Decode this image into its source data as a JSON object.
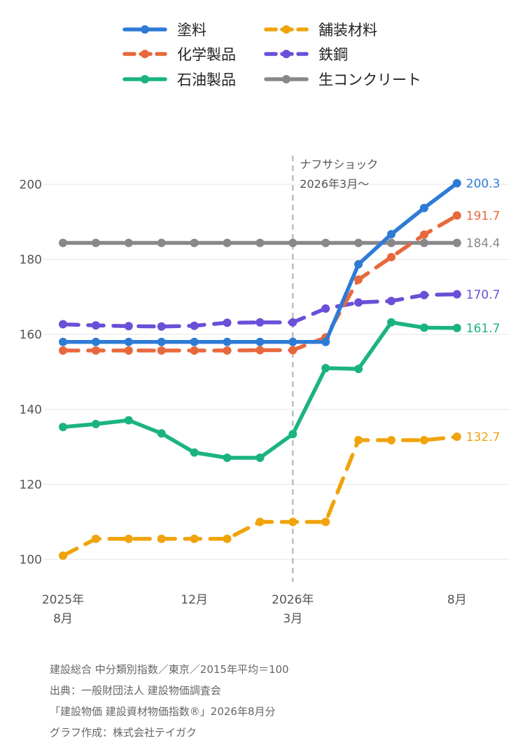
{
  "chart_data": {
    "type": "line",
    "x": [
      "2025-08",
      "2025-09",
      "2025-10",
      "2025-11",
      "2025-12",
      "2026-01",
      "2026-02",
      "2026-03",
      "2026-04",
      "2026-05",
      "2026-06",
      "2026-07",
      "2026-08"
    ],
    "x_tick_labels": [
      {
        "index": 0,
        "line1": "2025年",
        "line2": "8月"
      },
      {
        "index": 4,
        "line1": "12月",
        "line2": ""
      },
      {
        "index": 7,
        "line1": "2026年",
        "line2": "3月"
      },
      {
        "index": 12,
        "line1": "8月",
        "line2": ""
      }
    ],
    "ylim": [
      95,
      210
    ],
    "y_ticks": [
      100,
      120,
      140,
      160,
      180,
      200
    ],
    "grid": true,
    "legend_position": "top",
    "annotation": {
      "x_index": 7,
      "line1": "ナフサショック",
      "line2": "2026年3月〜"
    },
    "series": [
      {
        "name": "塗料",
        "color": "#2e7bd6",
        "dashed": false,
        "values": [
          158.0,
          158.0,
          158.0,
          158.0,
          158.0,
          158.0,
          158.0,
          158.0,
          158.0,
          178.7,
          186.7,
          193.7,
          200.3
        ],
        "end_label": "200.3"
      },
      {
        "name": "舗装材料",
        "color": "#f0a30a",
        "dashed": true,
        "values": [
          101.0,
          105.5,
          105.5,
          105.5,
          105.5,
          105.5,
          110.0,
          110.0,
          110.0,
          131.8,
          131.8,
          131.8,
          132.7
        ],
        "end_label": "132.7"
      },
      {
        "name": "化学製品",
        "color": "#e8683d",
        "dashed": true,
        "values": [
          155.7,
          155.7,
          155.7,
          155.7,
          155.7,
          155.7,
          155.8,
          155.8,
          159.2,
          174.6,
          180.6,
          186.6,
          191.7
        ],
        "end_label": "191.7"
      },
      {
        "name": "鉄鋼",
        "color": "#6a4fd8",
        "dashed": true,
        "values": [
          162.7,
          162.4,
          162.2,
          162.1,
          162.3,
          163.1,
          163.2,
          163.2,
          166.9,
          168.5,
          168.9,
          170.5,
          170.7
        ],
        "end_label": "170.7"
      },
      {
        "name": "石油製品",
        "color": "#1bb382",
        "dashed": false,
        "values": [
          135.3,
          136.1,
          137.1,
          133.6,
          128.5,
          127.1,
          127.1,
          133.4,
          151.0,
          150.8,
          163.2,
          161.8,
          161.7
        ],
        "end_label": "161.7"
      },
      {
        "name": "生コンクリート",
        "color": "#888888",
        "dashed": false,
        "values": [
          184.4,
          184.4,
          184.4,
          184.4,
          184.4,
          184.4,
          184.4,
          184.4,
          184.4,
          184.4,
          184.4,
          184.4,
          184.4
        ],
        "end_label": "184.4"
      }
    ]
  },
  "footer": {
    "line1": "建設総合 中分類別指数／東京／2015年平均＝100",
    "line2": "出典：一般財団法人 建設物価調査会",
    "line3": "「建設物価 建設資材物価指数®」2026年8月分",
    "line4": "グラフ作成：株式会社テイガク"
  }
}
